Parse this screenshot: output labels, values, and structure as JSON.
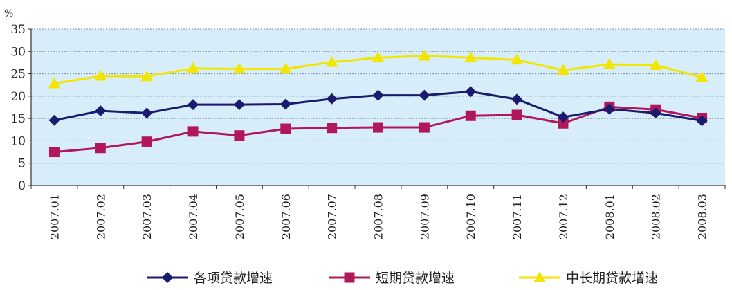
{
  "chart_data": {
    "type": "line",
    "title": "",
    "xlabel": "",
    "ylabel": "%",
    "ylim": [
      0,
      35
    ],
    "yticks": [
      0,
      5,
      10,
      15,
      20,
      25,
      30,
      35
    ],
    "grid": true,
    "legend": "bottom",
    "categories": [
      "2007.01",
      "2007.02",
      "2007.03",
      "2007.04",
      "2007.05",
      "2007.06",
      "2007.07",
      "2007.08",
      "2007.09",
      "2007.10",
      "2007.11",
      "2007.12",
      "2008.01",
      "2008.02",
      "2008.03"
    ],
    "series": [
      {
        "name": "各项贷款增速",
        "marker": "diamond",
        "color": "#1a1a6e",
        "values": [
          14.6,
          16.7,
          16.2,
          18.1,
          18.1,
          18.2,
          19.4,
          20.2,
          20.2,
          21.0,
          19.3,
          15.3,
          17.1,
          16.2,
          14.5
        ]
      },
      {
        "name": "短期贷款增速",
        "marker": "square",
        "color": "#b0185a",
        "values": [
          7.5,
          8.4,
          9.8,
          12.1,
          11.2,
          12.7,
          12.9,
          13.0,
          13.0,
          15.6,
          15.8,
          13.9,
          17.6,
          17.0,
          15.1
        ]
      },
      {
        "name": "中长期贷款增速",
        "marker": "triangle",
        "color": "#f2e600",
        "values": [
          22.8,
          24.5,
          24.4,
          26.2,
          26.1,
          26.1,
          27.6,
          28.6,
          29.0,
          28.6,
          28.1,
          25.8,
          27.1,
          26.9,
          24.2
        ]
      }
    ],
    "colors": {
      "plot_background": "#d7edf9",
      "grid": "#7a8ea0",
      "axis": "#333333"
    }
  }
}
